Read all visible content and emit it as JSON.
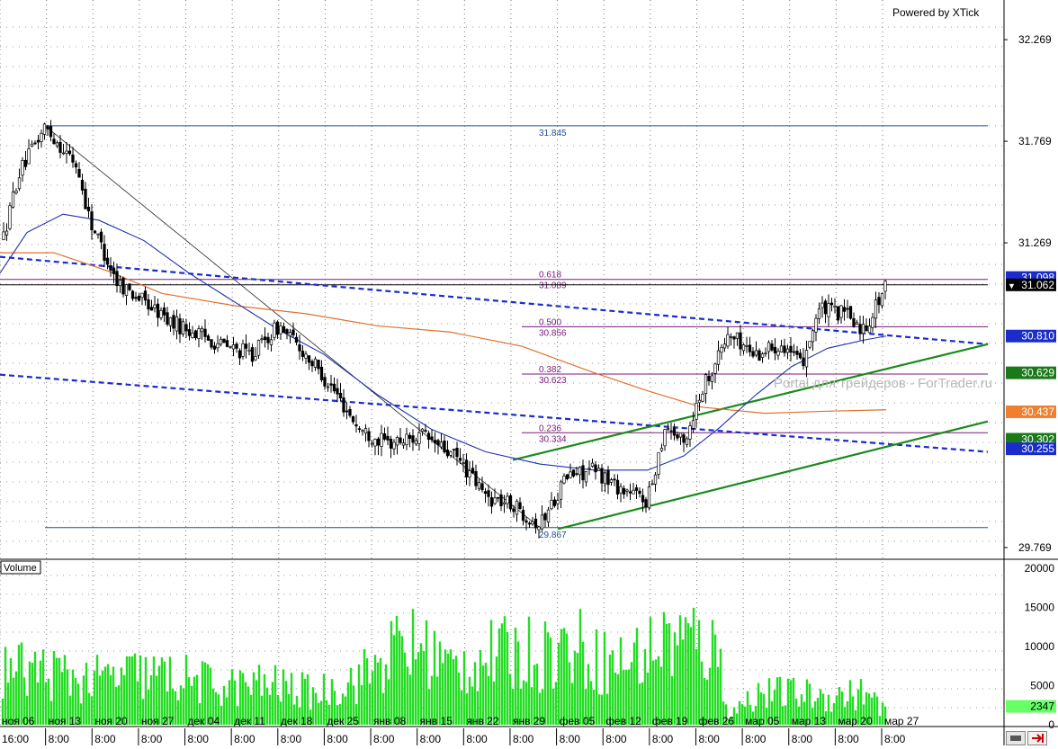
{
  "chart_data": [
    {
      "type": "candlestick",
      "title": "",
      "watermark": "Portal для трейдеров - ForTrader.ru",
      "credit": "Powered by XTick",
      "ylim": [
        29.72,
        32.42
      ],
      "y_ticks": [
        "32.269",
        "31.769",
        "31.269",
        "29.769"
      ],
      "last_price": "31.062",
      "lines": [
        {
          "name": "fib-100",
          "label": "31.845",
          "value": 31.845
        },
        {
          "name": "fib-618",
          "label_ratio": "0.618",
          "label": "31.089",
          "value": 31.089
        },
        {
          "name": "fib-500",
          "label_ratio": "0.500",
          "label": "30.856",
          "value": 30.856
        },
        {
          "name": "fib-382",
          "label_ratio": "0.382",
          "label": "30.623",
          "value": 30.623
        },
        {
          "name": "fib-236",
          "label_ratio": "0.236",
          "label": "30.334",
          "value": 30.334
        },
        {
          "name": "fib-0",
          "label": "29.867",
          "value": 29.867
        }
      ],
      "right_labels": [
        {
          "text": "31.098",
          "value": 31.098,
          "bg": "#1a2ccc",
          "fg": "#ffffff"
        },
        {
          "text": "31.062",
          "value": 31.062,
          "bg": "#000000",
          "fg": "#ffffff"
        },
        {
          "text": "30.810",
          "value": 30.81,
          "bg": "#1a2ccc",
          "fg": "#ffffff"
        },
        {
          "text": "30.629",
          "value": 30.629,
          "bg": "#1a7a1a",
          "fg": "#ffffff"
        },
        {
          "text": "30.437",
          "value": 30.437,
          "bg": "#f08030",
          "fg": "#ffffff"
        },
        {
          "text": "30.302",
          "value": 30.302,
          "bg": "#1a7a1a",
          "fg": "#ffffff"
        },
        {
          "text": "30.255",
          "value": 30.255,
          "bg": "#1a2ccc",
          "fg": "#ffffff"
        }
      ],
      "colors": {
        "up": "#000000",
        "down": "#000000",
        "ma_fast": "#1f2fb0",
        "ma_slow": "#e07030",
        "channel": "#1a2ccc",
        "trend": "#1a8a1a",
        "fib": "#7a1a7a",
        "fib_extreme": "#1f4f8f"
      }
    },
    {
      "type": "bar",
      "title": "Volume",
      "ylim": [
        0,
        20000
      ],
      "y_ticks": [
        "20000",
        "15000",
        "10000",
        "5000",
        "0"
      ],
      "last_value": "2347",
      "colors": {
        "bar": "#22dd22",
        "highlight": "#66ff66"
      }
    }
  ],
  "x_axis": {
    "dates": [
      "ноя 06",
      "ноя 13",
      "ноя 20",
      "ноя 27",
      "дек 04",
      "дек 11",
      "дек 18",
      "дек 25",
      "янв 08",
      "янв 15",
      "янв 22",
      "янв 29",
      "фев 05",
      "фев 12",
      "фев 19",
      "фев 26",
      "мар 05",
      "мар 13",
      "мар 20",
      "мар 27"
    ],
    "times": [
      "16:00",
      "8:00",
      "8:00",
      "8:00",
      "8:00",
      "8:00",
      "8:00",
      "8:00",
      "8:00",
      "8:00",
      "8:00",
      "8:00",
      "8:00",
      "8:00",
      "8:00",
      "8:00",
      "8:00",
      "8:00",
      "8:00",
      "8:00"
    ]
  },
  "price_anchors": [
    [
      0,
      31.22
    ],
    [
      20,
      31.6
    ],
    [
      50,
      31.84
    ],
    [
      85,
      31.65
    ],
    [
      100,
      31.38
    ],
    [
      130,
      31.08
    ],
    [
      160,
      30.98
    ],
    [
      190,
      30.88
    ],
    [
      220,
      30.82
    ],
    [
      250,
      30.76
    ],
    [
      280,
      30.72
    ],
    [
      310,
      30.86
    ],
    [
      340,
      30.72
    ],
    [
      370,
      30.55
    ],
    [
      400,
      30.35
    ],
    [
      430,
      30.28
    ],
    [
      470,
      30.32
    ],
    [
      510,
      30.2
    ],
    [
      540,
      30.02
    ],
    [
      570,
      29.98
    ],
    [
      600,
      29.88
    ],
    [
      630,
      30.12
    ],
    [
      660,
      30.15
    ],
    [
      690,
      30.06
    ],
    [
      720,
      30.0
    ],
    [
      740,
      30.38
    ],
    [
      760,
      30.28
    ],
    [
      780,
      30.55
    ],
    [
      810,
      30.82
    ],
    [
      840,
      30.72
    ],
    [
      870,
      30.78
    ],
    [
      890,
      30.66
    ],
    [
      910,
      30.94
    ],
    [
      940,
      30.92
    ],
    [
      960,
      30.84
    ],
    [
      985,
      31.06
    ]
  ],
  "volume_anchors": [
    [
      0,
      9000
    ],
    [
      50,
      8500
    ],
    [
      100,
      7000
    ],
    [
      150,
      8000
    ],
    [
      200,
      7500
    ],
    [
      250,
      6000
    ],
    [
      300,
      6500
    ],
    [
      350,
      5000
    ],
    [
      400,
      7500
    ],
    [
      440,
      12000
    ],
    [
      470,
      12500
    ],
    [
      500,
      9000
    ],
    [
      550,
      11000
    ],
    [
      600,
      11500
    ],
    [
      640,
      12500
    ],
    [
      680,
      9500
    ],
    [
      720,
      11500
    ],
    [
      740,
      13500
    ],
    [
      770,
      13500
    ],
    [
      800,
      11000
    ],
    [
      810,
      1500
    ],
    [
      840,
      5000
    ],
    [
      880,
      5000
    ],
    [
      920,
      4500
    ],
    [
      960,
      5000
    ],
    [
      985,
      2347
    ]
  ]
}
